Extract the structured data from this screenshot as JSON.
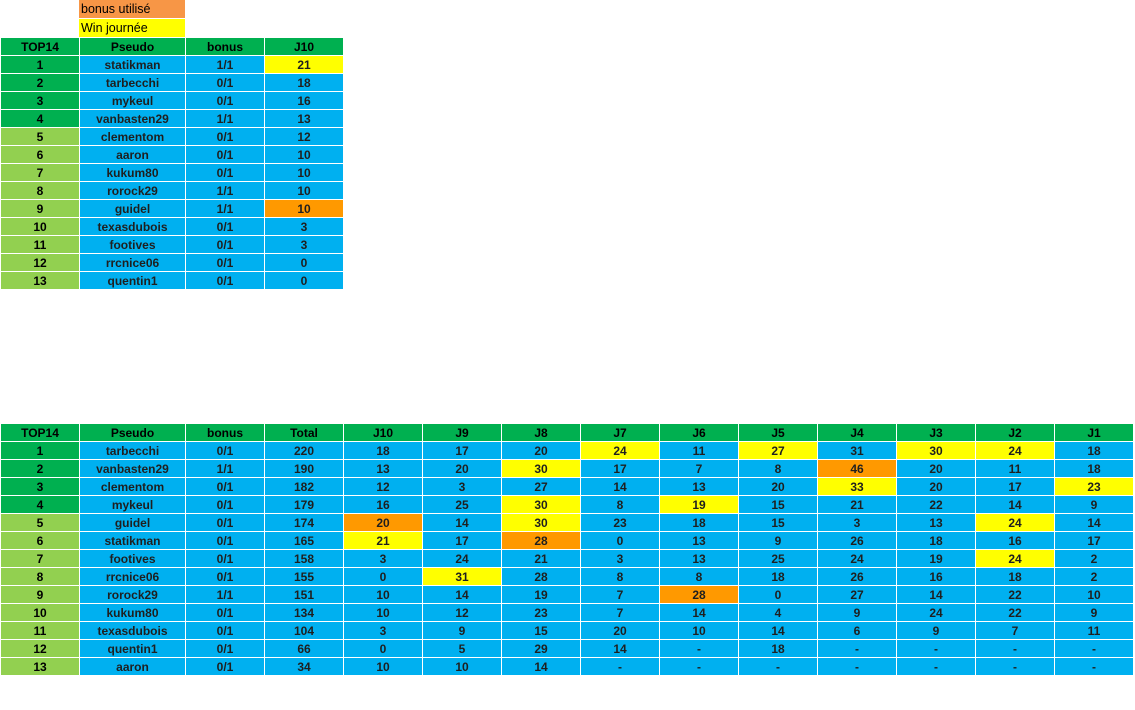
{
  "legend": {
    "bonus_label": "bonus utilisé",
    "win_label": "Win journée",
    "bonus_color": "#f79646",
    "win_color": "#ffff00"
  },
  "colors": {
    "header": "#00b050",
    "top_rank": "#00b050",
    "other_rank": "#92d050",
    "cell": "#00b0f0",
    "win": "#ffff00",
    "bonus": "#ff9900"
  },
  "day_table": {
    "headers": [
      "TOP14",
      "Pseudo",
      "bonus",
      "J10"
    ],
    "rows": [
      {
        "rank": "1",
        "pseudo": "statikman",
        "bonus": "1/1",
        "score": "21",
        "mark": "win"
      },
      {
        "rank": "2",
        "pseudo": "tarbecchi",
        "bonus": "0/1",
        "score": "18",
        "mark": ""
      },
      {
        "rank": "3",
        "pseudo": "mykeul",
        "bonus": "0/1",
        "score": "16",
        "mark": ""
      },
      {
        "rank": "4",
        "pseudo": "vanbasten29",
        "bonus": "1/1",
        "score": "13",
        "mark": ""
      },
      {
        "rank": "5",
        "pseudo": "clementom",
        "bonus": "0/1",
        "score": "12",
        "mark": ""
      },
      {
        "rank": "6",
        "pseudo": "aaron",
        "bonus": "0/1",
        "score": "10",
        "mark": ""
      },
      {
        "rank": "7",
        "pseudo": "kukum80",
        "bonus": "0/1",
        "score": "10",
        "mark": ""
      },
      {
        "rank": "8",
        "pseudo": "rorock29",
        "bonus": "1/1",
        "score": "10",
        "mark": ""
      },
      {
        "rank": "9",
        "pseudo": "guidel",
        "bonus": "1/1",
        "score": "10",
        "mark": "bonus"
      },
      {
        "rank": "10",
        "pseudo": "texasdubois",
        "bonus": "0/1",
        "score": "3",
        "mark": ""
      },
      {
        "rank": "11",
        "pseudo": "footives",
        "bonus": "0/1",
        "score": "3",
        "mark": ""
      },
      {
        "rank": "12",
        "pseudo": "rrcnice06",
        "bonus": "0/1",
        "score": "0",
        "mark": ""
      },
      {
        "rank": "13",
        "pseudo": "quentin1",
        "bonus": "0/1",
        "score": "0",
        "mark": ""
      }
    ]
  },
  "total_table": {
    "headers": [
      "TOP14",
      "Pseudo",
      "bonus",
      "Total",
      "J10",
      "J9",
      "J8",
      "J7",
      "J6",
      "J5",
      "J4",
      "J3",
      "J2",
      "J1"
    ],
    "rows": [
      {
        "rank": "1",
        "pseudo": "tarbecchi",
        "bonus": "0/1",
        "total": "220",
        "days": [
          "18",
          "17",
          "20",
          "24",
          "11",
          "27",
          "31",
          "30",
          "24",
          "18"
        ],
        "marks": [
          "",
          "",
          "",
          "win",
          "",
          "win",
          "",
          "win",
          "win",
          ""
        ]
      },
      {
        "rank": "2",
        "pseudo": "vanbasten29",
        "bonus": "1/1",
        "total": "190",
        "days": [
          "13",
          "20",
          "30",
          "17",
          "7",
          "8",
          "46",
          "20",
          "11",
          "18"
        ],
        "marks": [
          "",
          "",
          "win",
          "",
          "",
          "",
          "bonus",
          "",
          "",
          ""
        ]
      },
      {
        "rank": "3",
        "pseudo": "clementom",
        "bonus": "0/1",
        "total": "182",
        "days": [
          "12",
          "3",
          "27",
          "14",
          "13",
          "20",
          "33",
          "20",
          "17",
          "23"
        ],
        "marks": [
          "",
          "",
          "",
          "",
          "",
          "",
          "win",
          "",
          "",
          "win"
        ]
      },
      {
        "rank": "4",
        "pseudo": "mykeul",
        "bonus": "0/1",
        "total": "179",
        "days": [
          "16",
          "25",
          "30",
          "8",
          "19",
          "15",
          "21",
          "22",
          "14",
          "9"
        ],
        "marks": [
          "",
          "",
          "win",
          "",
          "win",
          "",
          "",
          "",
          "",
          ""
        ]
      },
      {
        "rank": "5",
        "pseudo": "guidel",
        "bonus": "0/1",
        "total": "174",
        "days": [
          "20",
          "14",
          "30",
          "23",
          "18",
          "15",
          "3",
          "13",
          "24",
          "14"
        ],
        "marks": [
          "bonus",
          "",
          "win",
          "",
          "",
          "",
          "",
          "",
          "win",
          ""
        ]
      },
      {
        "rank": "6",
        "pseudo": "statikman",
        "bonus": "0/1",
        "total": "165",
        "days": [
          "21",
          "17",
          "28",
          "0",
          "13",
          "9",
          "26",
          "18",
          "16",
          "17"
        ],
        "marks": [
          "win",
          "",
          "bonus",
          "",
          "",
          "",
          "",
          "",
          "",
          ""
        ]
      },
      {
        "rank": "7",
        "pseudo": "footives",
        "bonus": "0/1",
        "total": "158",
        "days": [
          "3",
          "24",
          "21",
          "3",
          "13",
          "25",
          "24",
          "19",
          "24",
          "2"
        ],
        "marks": [
          "",
          "",
          "",
          "",
          "",
          "",
          "",
          "",
          "win",
          ""
        ]
      },
      {
        "rank": "8",
        "pseudo": "rrcnice06",
        "bonus": "0/1",
        "total": "155",
        "days": [
          "0",
          "31",
          "28",
          "8",
          "8",
          "18",
          "26",
          "16",
          "18",
          "2"
        ],
        "marks": [
          "",
          "win",
          "",
          "",
          "",
          "",
          "",
          "",
          "",
          ""
        ]
      },
      {
        "rank": "9",
        "pseudo": "rorock29",
        "bonus": "1/1",
        "total": "151",
        "days": [
          "10",
          "14",
          "19",
          "7",
          "28",
          "0",
          "27",
          "14",
          "22",
          "10"
        ],
        "marks": [
          "",
          "",
          "",
          "",
          "bonus",
          "",
          "",
          "",
          "",
          ""
        ]
      },
      {
        "rank": "10",
        "pseudo": "kukum80",
        "bonus": "0/1",
        "total": "134",
        "days": [
          "10",
          "12",
          "23",
          "7",
          "14",
          "4",
          "9",
          "24",
          "22",
          "9"
        ],
        "marks": [
          "",
          "",
          "",
          "",
          "",
          "",
          "",
          "",
          "",
          ""
        ]
      },
      {
        "rank": "11",
        "pseudo": "texasdubois",
        "bonus": "0/1",
        "total": "104",
        "days": [
          "3",
          "9",
          "15",
          "20",
          "10",
          "14",
          "6",
          "9",
          "7",
          "11"
        ],
        "marks": [
          "",
          "",
          "",
          "",
          "",
          "",
          "",
          "",
          "",
          ""
        ]
      },
      {
        "rank": "12",
        "pseudo": "quentin1",
        "bonus": "0/1",
        "total": "66",
        "days": [
          "0",
          "5",
          "29",
          "14",
          "-",
          "18",
          "-",
          "-",
          "-",
          "-"
        ],
        "marks": [
          "",
          "",
          "",
          "",
          "",
          "",
          "",
          "",
          "",
          ""
        ]
      },
      {
        "rank": "13",
        "pseudo": "aaron",
        "bonus": "0/1",
        "total": "34",
        "days": [
          "10",
          "10",
          "14",
          "-",
          "-",
          "-",
          "-",
          "-",
          "-",
          "-"
        ],
        "marks": [
          "",
          "",
          "",
          "",
          "",
          "",
          "",
          "",
          "",
          ""
        ]
      }
    ]
  }
}
